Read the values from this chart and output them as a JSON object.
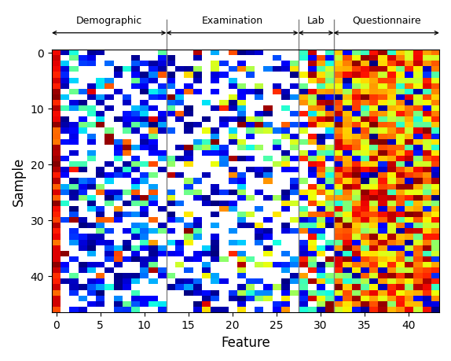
{
  "n_samples": 47,
  "n_features": 44,
  "xlabel": "Feature",
  "ylabel": "Sample",
  "colormap": "jet",
  "category_boundaries": [
    13,
    28,
    32
  ],
  "category_labels": [
    "Demographic",
    "Examination",
    "Lab",
    "Questionnaire"
  ],
  "seed": 0,
  "vmin": 0,
  "vmax": 1,
  "figsize": [
    5.74,
    4.6
  ],
  "dpi": 100
}
